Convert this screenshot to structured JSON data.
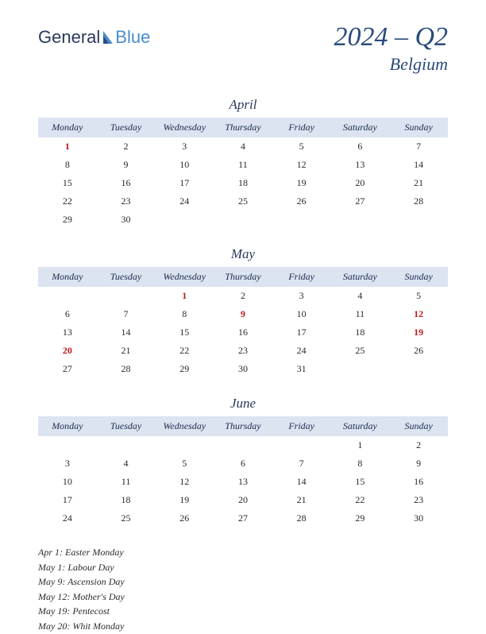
{
  "logo": {
    "part1": "General",
    "part2": "Blue"
  },
  "title": {
    "quarter": "2024 – Q2",
    "country": "Belgium"
  },
  "colors": {
    "header_bg": "#dce4f2",
    "text": "#2a2a2a",
    "accent": "#2a4b7c",
    "holiday": "#c01818",
    "logo_dark": "#2a3a5a",
    "logo_blue": "#4a8cc9"
  },
  "day_headers": [
    "Monday",
    "Tuesday",
    "Wednesday",
    "Thursday",
    "Friday",
    "Saturday",
    "Sunday"
  ],
  "months": [
    {
      "name": "April",
      "weeks": [
        [
          {
            "d": 1,
            "h": true
          },
          {
            "d": 2
          },
          {
            "d": 3
          },
          {
            "d": 4
          },
          {
            "d": 5
          },
          {
            "d": 6
          },
          {
            "d": 7
          }
        ],
        [
          {
            "d": 8
          },
          {
            "d": 9
          },
          {
            "d": 10
          },
          {
            "d": 11
          },
          {
            "d": 12
          },
          {
            "d": 13
          },
          {
            "d": 14
          }
        ],
        [
          {
            "d": 15
          },
          {
            "d": 16
          },
          {
            "d": 17
          },
          {
            "d": 18
          },
          {
            "d": 19
          },
          {
            "d": 20
          },
          {
            "d": 21
          }
        ],
        [
          {
            "d": 22
          },
          {
            "d": 23
          },
          {
            "d": 24
          },
          {
            "d": 25
          },
          {
            "d": 26
          },
          {
            "d": 27
          },
          {
            "d": 28
          }
        ],
        [
          {
            "d": 29
          },
          {
            "d": 30
          },
          null,
          null,
          null,
          null,
          null
        ]
      ]
    },
    {
      "name": "May",
      "weeks": [
        [
          null,
          null,
          {
            "d": 1,
            "h": true
          },
          {
            "d": 2
          },
          {
            "d": 3
          },
          {
            "d": 4
          },
          {
            "d": 5
          }
        ],
        [
          {
            "d": 6
          },
          {
            "d": 7
          },
          {
            "d": 8
          },
          {
            "d": 9,
            "h": true
          },
          {
            "d": 10
          },
          {
            "d": 11
          },
          {
            "d": 12,
            "h": true
          }
        ],
        [
          {
            "d": 13
          },
          {
            "d": 14
          },
          {
            "d": 15
          },
          {
            "d": 16
          },
          {
            "d": 17
          },
          {
            "d": 18
          },
          {
            "d": 19,
            "h": true
          }
        ],
        [
          {
            "d": 20,
            "h": true
          },
          {
            "d": 21
          },
          {
            "d": 22
          },
          {
            "d": 23
          },
          {
            "d": 24
          },
          {
            "d": 25
          },
          {
            "d": 26
          }
        ],
        [
          {
            "d": 27
          },
          {
            "d": 28
          },
          {
            "d": 29
          },
          {
            "d": 30
          },
          {
            "d": 31
          },
          null,
          null
        ]
      ]
    },
    {
      "name": "June",
      "weeks": [
        [
          null,
          null,
          null,
          null,
          null,
          {
            "d": 1
          },
          {
            "d": 2
          }
        ],
        [
          {
            "d": 3
          },
          {
            "d": 4
          },
          {
            "d": 5
          },
          {
            "d": 6
          },
          {
            "d": 7
          },
          {
            "d": 8
          },
          {
            "d": 9
          }
        ],
        [
          {
            "d": 10
          },
          {
            "d": 11
          },
          {
            "d": 12
          },
          {
            "d": 13
          },
          {
            "d": 14
          },
          {
            "d": 15
          },
          {
            "d": 16
          }
        ],
        [
          {
            "d": 17
          },
          {
            "d": 18
          },
          {
            "d": 19
          },
          {
            "d": 20
          },
          {
            "d": 21
          },
          {
            "d": 22
          },
          {
            "d": 23
          }
        ],
        [
          {
            "d": 24
          },
          {
            "d": 25
          },
          {
            "d": 26
          },
          {
            "d": 27
          },
          {
            "d": 28
          },
          {
            "d": 29
          },
          {
            "d": 30
          }
        ]
      ]
    }
  ],
  "holidays": [
    "Apr 1: Easter Monday",
    "May 1: Labour Day",
    "May 9: Ascension Day",
    "May 12: Mother's Day",
    "May 19: Pentecost",
    "May 20: Whit Monday"
  ]
}
